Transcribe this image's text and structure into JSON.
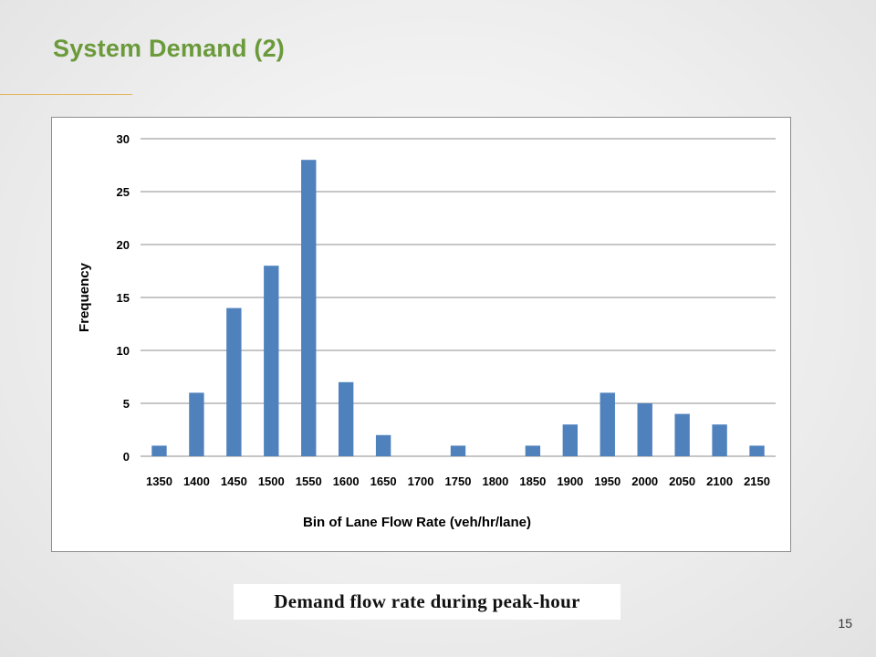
{
  "slide": {
    "title": "System Demand (2)",
    "caption": "Demand flow rate during peak-hour",
    "page_number": "15"
  },
  "colors": {
    "title": "#6a9a3a",
    "accent_rule": "#e6b35a",
    "bar": "#4f81bd",
    "grid": "#8c8c8c"
  },
  "chart_data": {
    "type": "bar",
    "categories": [
      "1350",
      "1400",
      "1450",
      "1500",
      "1550",
      "1600",
      "1650",
      "1700",
      "1750",
      "1800",
      "1850",
      "1900",
      "1950",
      "2000",
      "2050",
      "2100",
      "2150"
    ],
    "values": [
      1,
      6,
      14,
      18,
      28,
      7,
      2,
      0,
      1,
      0,
      1,
      3,
      6,
      5,
      4,
      3,
      1
    ],
    "xlabel": "Bin of Lane Flow Rate (veh/hr/lane)",
    "ylabel": "Frequency",
    "ylim": [
      0,
      30
    ],
    "yticks": [
      0,
      5,
      10,
      15,
      20,
      25,
      30
    ],
    "grid": true,
    "legend": "none"
  }
}
